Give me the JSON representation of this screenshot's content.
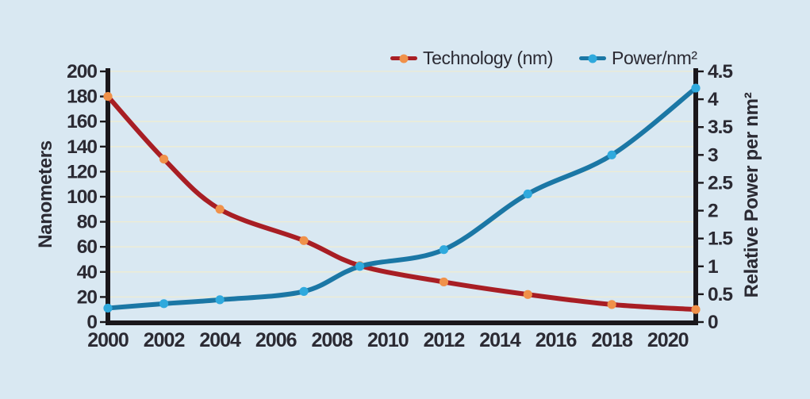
{
  "chart_data": {
    "type": "line",
    "title": "",
    "x": [
      2000,
      2002,
      2004,
      2007,
      2009,
      2012,
      2015,
      2018,
      2021
    ],
    "x_range": [
      2000,
      2021
    ],
    "x_ticks": [
      2000,
      2002,
      2004,
      2006,
      2008,
      2010,
      2012,
      2014,
      2016,
      2018,
      2020
    ],
    "series": [
      {
        "name": "Technology (nm)",
        "axis": "left",
        "values": [
          180,
          130,
          90,
          65,
          45,
          32,
          22,
          14,
          10
        ],
        "line_color": "#a81e24",
        "marker_color": "#f0914a"
      },
      {
        "name": "Power/nm²",
        "axis": "right",
        "values": [
          0.25,
          0.33,
          0.4,
          0.55,
          1.0,
          1.3,
          2.3,
          3.0,
          4.2
        ],
        "line_color": "#1b77a5",
        "marker_color": "#2fa9dd"
      }
    ],
    "left_axis": {
      "label": "Nanometers",
      "min": 0,
      "max": 200,
      "step": 20
    },
    "right_axis": {
      "label": "Relative Power per nm²",
      "min": 0,
      "max": 4.5,
      "step": 0.5
    },
    "grid": true,
    "legend_position": "top"
  },
  "legend": {
    "items": [
      {
        "label": "Technology (nm)"
      },
      {
        "label": "Power/nm²"
      }
    ]
  },
  "colors": {
    "background": "#d9e8f2",
    "grid": "#efecd2",
    "axis": "#1a171b",
    "text": "#2b2a33",
    "technology_line": "#a81e24",
    "technology_marker": "#f0914a",
    "power_line": "#1b77a5",
    "power_marker": "#2fa9dd"
  }
}
